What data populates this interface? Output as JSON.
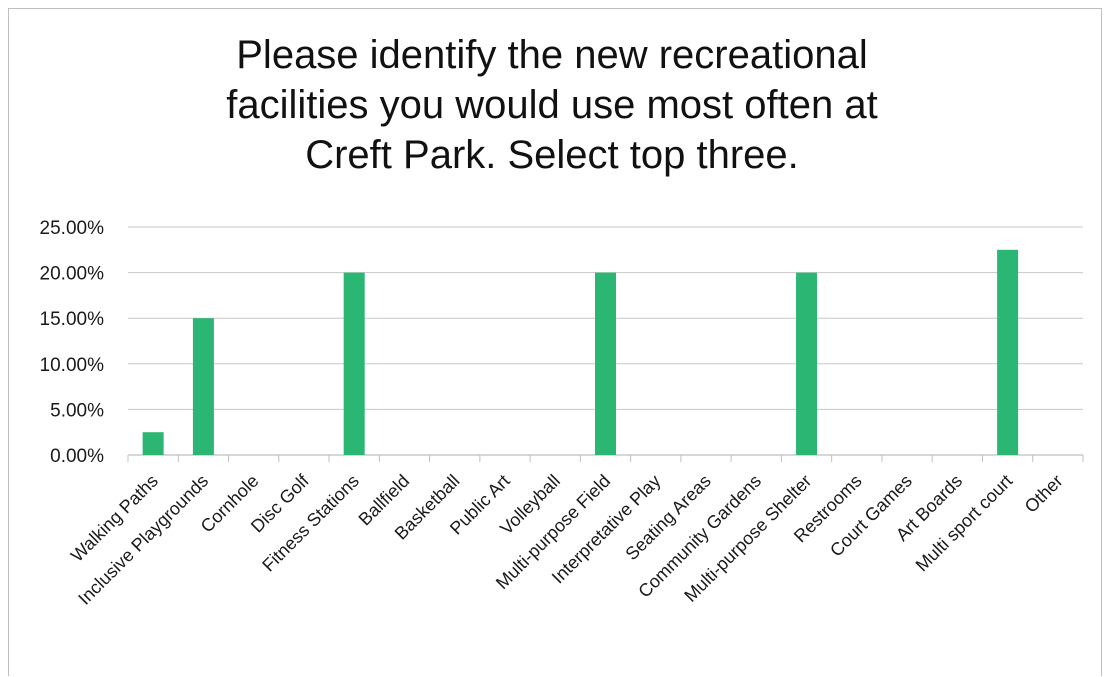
{
  "chart_data": {
    "type": "bar",
    "title": "Please identify the new recreational\nfacilities you would use most often at\nCreft Park. Select top three.",
    "xlabel": "",
    "ylabel": "",
    "categories": [
      "Walking Paths",
      "Inclusive Playgrounds",
      "Cornhole",
      "Disc Golf",
      "Fitness Stations",
      "Ballfield",
      "Basketball",
      "Public Art",
      "Volleyball",
      "Multi-purpose Field",
      "Interpretative Play",
      "Seating Areas",
      "Community Gardens",
      "Multi-purpose Shelter",
      "Restrooms",
      "Court Games",
      "Art Boards",
      "Multi sport court",
      "Other"
    ],
    "values": [
      2.5,
      15.0,
      0,
      0,
      20.0,
      0,
      0,
      0,
      0,
      20.0,
      0,
      0,
      0,
      20.0,
      0,
      0,
      0,
      22.5,
      0
    ],
    "yticks": [
      "0.00%",
      "5.00%",
      "10.00%",
      "15.00%",
      "20.00%",
      "25.00%"
    ],
    "ylim": [
      0,
      25
    ],
    "grid": true,
    "legend": "none",
    "bar_color": "#2bb673",
    "grid_color": "#c8c8c8",
    "axis_color": "#bfbfbf"
  }
}
